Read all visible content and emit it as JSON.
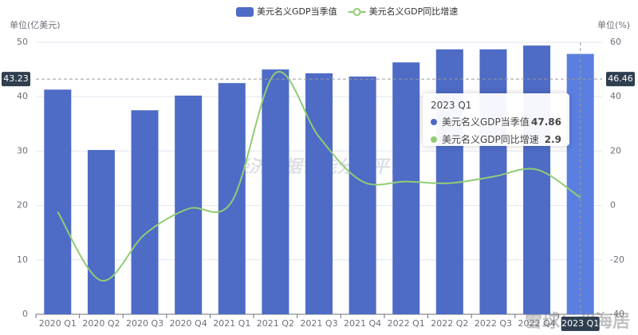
{
  "chart_data": {
    "type": "bar-line",
    "y_axis_label": "单位(亿美元)",
    "y2_axis_label": "单位(%)",
    "categories": [
      "2020 Q1",
      "2020 Q2",
      "2020 Q3",
      "2020 Q4",
      "2021 Q1",
      "2021 Q2",
      "2021 Q3",
      "2021 Q4",
      "2022 Q1",
      "2022 Q2",
      "2022 Q3",
      "2022 Q4",
      "2023 Q1"
    ],
    "series": [
      {
        "name": "美元名义GDP当季值",
        "type": "bar",
        "color": "#4e6bc6",
        "highlight_color": "#5b7fe0",
        "values": [
          41.3,
          30.2,
          37.5,
          40.2,
          42.5,
          45.0,
          44.3,
          43.7,
          46.3,
          48.7,
          48.7,
          49.4,
          47.86
        ]
      },
      {
        "name": "美元名义GDP同比增速",
        "type": "line",
        "axis": "y2",
        "color": "#91cc75",
        "values": [
          -2.3,
          -27.6,
          -10.6,
          -1.2,
          1.5,
          48.7,
          25.2,
          8.8,
          8.8,
          8.2,
          10.6,
          13.2,
          2.9
        ]
      }
    ],
    "ylim": [
      0,
      50
    ],
    "yticks": [
      0,
      10,
      20,
      30,
      40,
      50
    ],
    "y2lim": [
      -40,
      60
    ],
    "y2ticks": [
      -40,
      -20,
      0,
      20,
      40,
      60
    ],
    "grid": true,
    "legend_position": "top",
    "axis_pointer": {
      "y": 43.23,
      "y2": 46.46,
      "category_index": 12
    },
    "watermarks": [
      "经济数据智能分析平台",
      "雪球：北海居"
    ]
  }
}
